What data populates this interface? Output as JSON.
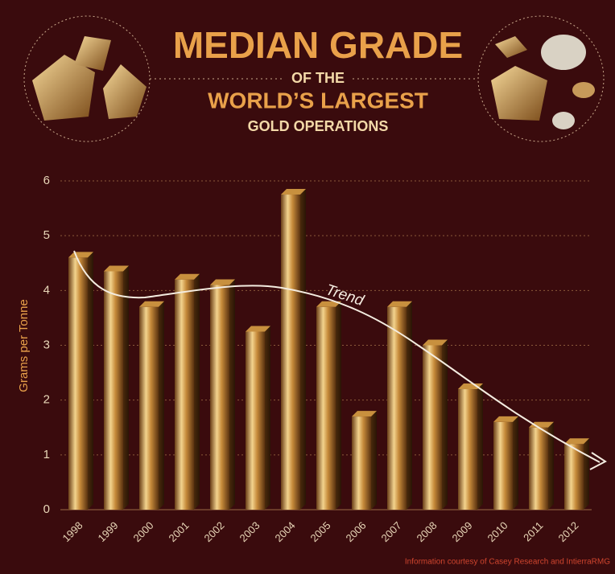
{
  "chart_data": {
    "type": "bar",
    "title": [
      "MEDIAN GRADE",
      "OF THE",
      "WORLD’S LARGEST",
      "GOLD OPERATIONS"
    ],
    "y_label": "Grams per Tonne",
    "annotation": "Trend",
    "source": "Information courtesy of Casey Research and IntierraRMG",
    "categories": [
      "1998",
      "1999",
      "2000",
      "2001",
      "2002",
      "2003",
      "2004",
      "2005",
      "2006",
      "2007",
      "2008",
      "2009",
      "2010",
      "2011",
      "2012"
    ],
    "values": [
      4.6,
      4.35,
      3.7,
      4.2,
      4.1,
      3.25,
      5.75,
      3.7,
      1.7,
      3.7,
      3.0,
      2.2,
      1.6,
      1.5,
      1.2
    ],
    "color": "#c8903e",
    "ylim": [
      0,
      6
    ],
    "yticks": [
      0,
      1,
      2,
      3,
      4,
      5,
      6
    ],
    "grid": true
  }
}
